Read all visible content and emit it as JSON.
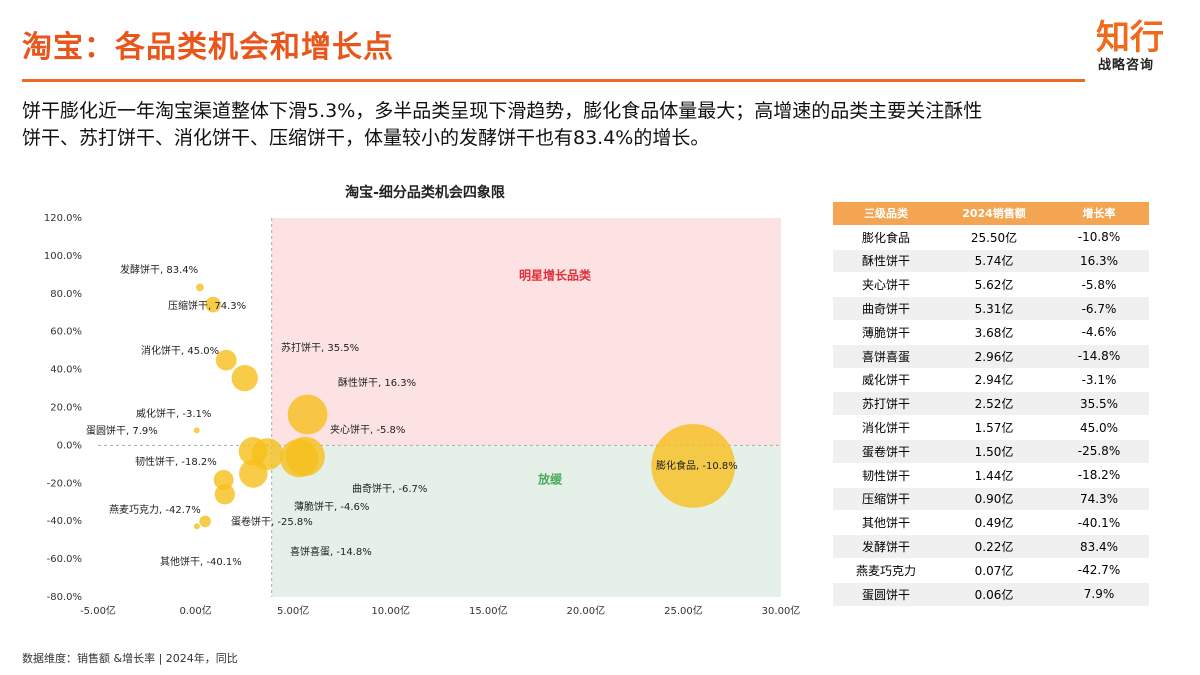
{
  "header": {
    "title": "淘宝：各品类机会和增长点",
    "logo": "知行",
    "logo_sub": "战略咨询"
  },
  "description": [
    "饼干膨化近一年淘宝渠道整体下滑5.3%，多半品类呈现下滑趋势，膨化食品体量最大；高增速的品类主要关注酥性",
    "饼干、苏打饼干、消化饼干、压缩饼干，体量较小的发酵饼干也有83.4%的增长。"
  ],
  "chart_data": {
    "type": "scatter",
    "title": "淘宝-细分品类机会四象限",
    "color": "#f6bf1c",
    "quadrant_labels": [
      "明星增长品类",
      "放缓"
    ],
    "reference_lines": {
      "x": 3.9,
      "y": 0
    },
    "xlim": [
      -5,
      30
    ],
    "ylim": [
      -80,
      120
    ],
    "xticks": [
      {
        "value": -5,
        "label": "-5.00亿"
      },
      {
        "value": 0,
        "label": "0.00亿"
      },
      {
        "value": 5,
        "label": "5.00亿"
      },
      {
        "value": 10,
        "label": "10.00亿"
      },
      {
        "value": 15,
        "label": "15.00亿"
      },
      {
        "value": 20,
        "label": "20.00亿"
      },
      {
        "value": 25,
        "label": "25.00亿"
      },
      {
        "value": 30,
        "label": "30.00亿"
      }
    ],
    "yticks": [
      {
        "value": 120,
        "label": "120.0%"
      },
      {
        "value": 100,
        "label": "100.0%"
      },
      {
        "value": 80,
        "label": "80.0%"
      },
      {
        "value": 60,
        "label": "60.0%"
      },
      {
        "value": 40,
        "label": "40.0%"
      },
      {
        "value": 20,
        "label": "20.0%"
      },
      {
        "value": 0,
        "label": "0.0%"
      },
      {
        "value": -20,
        "label": "-20.0%"
      },
      {
        "value": -40,
        "label": "-40.0%"
      },
      {
        "value": -60,
        "label": "-60.0%"
      },
      {
        "value": -80,
        "label": "-80.0%"
      }
    ],
    "x": [
      25.5,
      5.74,
      5.62,
      5.31,
      3.68,
      2.96,
      2.94,
      2.52,
      1.57,
      1.5,
      1.44,
      0.9,
      0.49,
      0.22,
      0.07,
      0.06
    ],
    "values": [
      -10.8,
      16.3,
      -5.8,
      -6.7,
      -4.6,
      -14.8,
      -3.1,
      35.5,
      45.0,
      -25.8,
      -18.2,
      74.3,
      -40.1,
      83.4,
      -42.7,
      7.9
    ],
    "point_labels": [
      "膨化食品, -10.8%",
      "酥性饼干, 16.3%",
      "夹心饼干, -5.8%",
      "曲奇饼干, -6.7%",
      "薄脆饼干, -4.6%",
      "喜饼喜蛋, -14.8%",
      "威化饼干, -3.1%",
      "苏打饼干, 35.5%",
      "消化饼干, 45.0%",
      "蛋卷饼干, -25.8%",
      "韧性饼干, -18.2%",
      "压缩饼干, 74.3%",
      "其他饼干, -40.1%",
      "发酵饼干, 83.4%",
      "燕麦巧克力, -42.7%",
      "蛋圆饼干, 7.9%"
    ]
  },
  "table": {
    "header": [
      "三级品类",
      "2024销售额",
      "增长率"
    ],
    "rows": [
      [
        "膨化食品",
        "25.50亿",
        "-10.8%"
      ],
      [
        "酥性饼干",
        "5.74亿",
        "16.3%"
      ],
      [
        "夹心饼干",
        "5.62亿",
        "-5.8%"
      ],
      [
        "曲奇饼干",
        "5.31亿",
        "-6.7%"
      ],
      [
        "薄脆饼干",
        "3.68亿",
        "-4.6%"
      ],
      [
        "喜饼喜蛋",
        "2.96亿",
        "-14.8%"
      ],
      [
        "威化饼干",
        "2.94亿",
        "-3.1%"
      ],
      [
        "苏打饼干",
        "2.52亿",
        "35.5%"
      ],
      [
        "消化饼干",
        "1.57亿",
        "45.0%"
      ],
      [
        "蛋卷饼干",
        "1.50亿",
        "-25.8%"
      ],
      [
        "韧性饼干",
        "1.44亿",
        "-18.2%"
      ],
      [
        "压缩饼干",
        "0.90亿",
        "74.3%"
      ],
      [
        "其他饼干",
        "0.49亿",
        "-40.1%"
      ],
      [
        "发酵饼干",
        "0.22亿",
        "83.4%"
      ],
      [
        "燕麦巧克力",
        "0.07亿",
        "-42.7%"
      ],
      [
        "蛋圆饼干",
        "0.06亿",
        "7.9%"
      ]
    ]
  },
  "footnote": "数据维度：销售额 &增长率 | 2024年，同比"
}
